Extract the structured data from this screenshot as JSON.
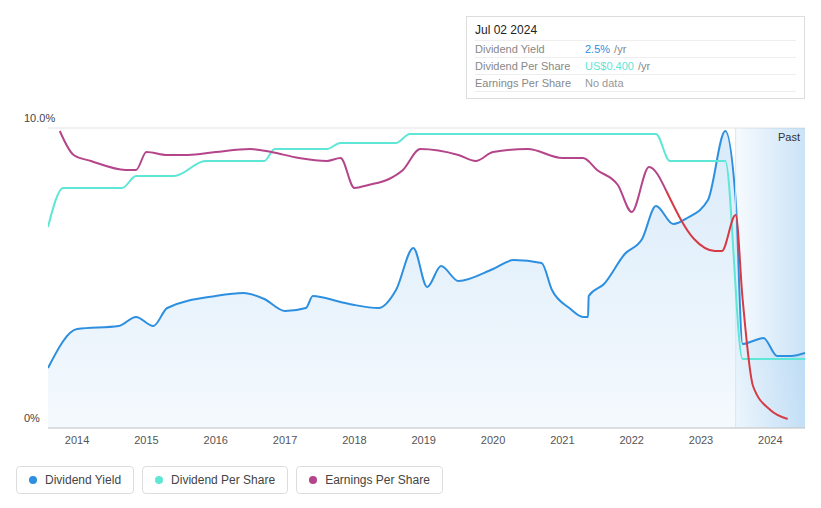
{
  "chart_data": {
    "type": "line",
    "tooltip": {
      "title": "Jul 02 2024",
      "rows": [
        {
          "label": "Dividend Yield",
          "value": "2.5%",
          "unit": "/yr",
          "color": "#2d8fdf"
        },
        {
          "label": "Dividend Per Share",
          "value": "US$0.400",
          "unit": "/yr",
          "color": "#5ee6d6"
        },
        {
          "label": "Earnings Per Share",
          "value": "No data",
          "color": "#999999"
        }
      ]
    },
    "shaded_region": {
      "label": "Past",
      "x": [
        2023.5,
        2024.5
      ]
    },
    "xlim": [
      2013.58,
      2024.5
    ],
    "xticks": [
      2014,
      2015,
      2016,
      2017,
      2018,
      2019,
      2020,
      2021,
      2022,
      2023,
      2024
    ],
    "ylim": [
      0,
      10
    ],
    "yticks": [
      {
        "value": 0,
        "label": "0%"
      },
      {
        "value": 10,
        "label": "10.0%"
      }
    ],
    "grid": true,
    "series": [
      {
        "name": "Dividend Yield",
        "type": "area",
        "color": "#2d8fdf",
        "x": [
          2013.58,
          2014,
          2014.6,
          2014.85,
          2015.1,
          2015.3,
          2016,
          2016.4,
          2016.7,
          2017,
          2017.3,
          2017.4,
          2017.8,
          2018,
          2018.35,
          2018.6,
          2018.85,
          2019.05,
          2019.25,
          2019.5,
          2020,
          2020.3,
          2020.7,
          2020.85,
          2021.1,
          2021.3,
          2021.37,
          2021.38,
          2021.6,
          2021.9,
          2022.15,
          2022.35,
          2022.6,
          2022.8,
          2023.1,
          2023.35,
          2023.5,
          2023.6,
          2023.75,
          2023.9,
          2024.1,
          2024.3,
          2024.5
        ],
        "values": [
          2.0,
          3.3,
          3.4,
          3.7,
          3.4,
          4.0,
          4.4,
          4.5,
          4.3,
          3.9,
          4.0,
          4.4,
          4.2,
          4.1,
          4.0,
          4.6,
          6.0,
          4.7,
          5.4,
          4.9,
          5.3,
          5.6,
          5.5,
          4.6,
          4.0,
          3.7,
          3.7,
          4.4,
          4.8,
          5.8,
          6.3,
          7.4,
          6.8,
          7.0,
          7.6,
          9.9,
          7.6,
          2.8,
          2.9,
          3.0,
          2.4,
          2.4,
          2.5
        ]
      },
      {
        "name": "Dividend Per Share",
        "type": "line",
        "color": "#5ee6d6",
        "x": [
          2013.58,
          2013.8,
          2014.65,
          2014.85,
          2015.4,
          2015.85,
          2016.7,
          2016.85,
          2017.6,
          2017.8,
          2018.6,
          2018.8,
          2022.35,
          2022.55,
          2023.35,
          2023.6,
          2024.5
        ],
        "values": [
          6.7,
          8.0,
          8.0,
          8.4,
          8.4,
          8.9,
          8.9,
          9.3,
          9.3,
          9.5,
          9.5,
          9.8,
          9.8,
          8.9,
          8.9,
          2.3,
          2.3
        ]
      },
      {
        "name": "Earnings Per Share",
        "type": "line",
        "color": "#b5458a",
        "x": [
          2013.75,
          2013.95,
          2014.2,
          2014.7,
          2014.85,
          2015,
          2015.3,
          2015.6,
          2016,
          2016.5,
          2016.8,
          2017.2,
          2017.6,
          2017.8,
          2018,
          2018.2,
          2018.5,
          2018.7,
          2018.95,
          2019.5,
          2019.75,
          2020,
          2020.5,
          2021,
          2021.3,
          2021.5,
          2021.8,
          2022,
          2022.25,
          2022.5,
          2022.9,
          2023.2,
          2023.3,
          2023.5,
          2023.6,
          2023.75,
          2024,
          2024.25
        ],
        "values": [
          9.9,
          9.1,
          8.9,
          8.6,
          8.6,
          9.2,
          9.1,
          9.1,
          9.2,
          9.3,
          9.2,
          9.0,
          8.9,
          9.0,
          8.0,
          8.1,
          8.3,
          8.6,
          9.3,
          9.1,
          8.9,
          9.2,
          9.3,
          9.0,
          9.0,
          8.6,
          8.1,
          7.2,
          8.7,
          7.9,
          6.3,
          5.9,
          5.9,
          7.1,
          4.3,
          1.4,
          0.6,
          0.3
        ],
        "colors": [
          "#b5458a",
          "#b5458a",
          "#b5458a",
          "#b5458a",
          "#b5458a",
          "#b5458a",
          "#b5458a",
          "#b5458a",
          "#b5458a",
          "#b5458a",
          "#b5458a",
          "#b5458a",
          "#b5458a",
          "#b5458a",
          "#b5458a",
          "#b5458a",
          "#b5458a",
          "#b5458a",
          "#b5458a",
          "#b5458a",
          "#b5458a",
          "#b5458a",
          "#b5458a",
          "#b5458a",
          "#b5458a",
          "#b5458a",
          "#b5458a",
          "#b5458a",
          "#b5458a",
          "#b5458a",
          "#d63b45",
          "#d63b45",
          "#d63b45",
          "#d63b45",
          "#d63b45",
          "#d63b45",
          "#d63b45",
          "#d63b45"
        ]
      }
    ]
  }
}
